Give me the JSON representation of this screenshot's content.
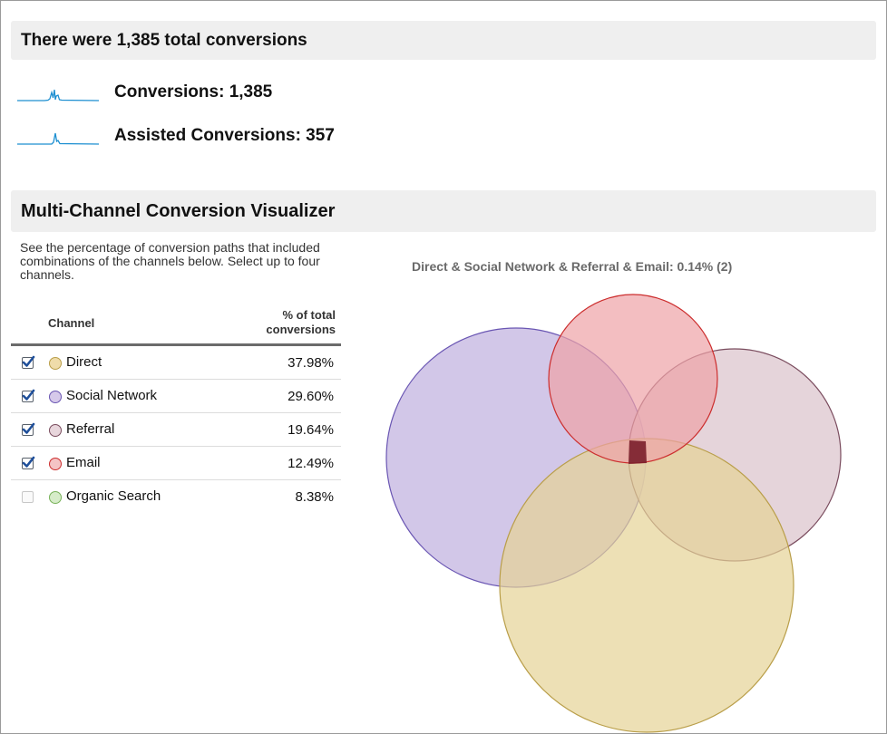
{
  "summary": {
    "title": "There were 1,385 total conversions",
    "metrics": [
      {
        "label": "Conversions: 1,385",
        "sparkline_icon": "sparkline-icon"
      },
      {
        "label": "Assisted Conversions: 357",
        "sparkline_icon": "sparkline-icon"
      }
    ]
  },
  "visualizer": {
    "title": "Multi-Channel Conversion Visualizer",
    "description": "See the percentage of conversion paths that included combinations of the channels below. Select up to four channels.",
    "table": {
      "col_channel": "Channel",
      "col_pct_line1": "% of total",
      "col_pct_line2": "conversions",
      "rows": [
        {
          "name": "Direct",
          "pct": "37.98%",
          "checked": true,
          "color": "#efdcaa",
          "border": "#b99e49"
        },
        {
          "name": "Social Network",
          "pct": "29.60%",
          "checked": true,
          "color": "#d6c9ea",
          "border": "#6a56b3"
        },
        {
          "name": "Referral",
          "pct": "19.64%",
          "checked": true,
          "color": "#e8d6dc",
          "border": "#7a4c5e"
        },
        {
          "name": "Email",
          "pct": "12.49%",
          "checked": true,
          "color": "#f4c3c5",
          "border": "#cc2e2e"
        },
        {
          "name": "Organic Search",
          "pct": "8.38%",
          "checked": false,
          "color": "#d6ecc9",
          "border": "#78b25a"
        }
      ]
    },
    "venn_caption": "Direct & Social Network & Referral & Email: 0.14% (2)"
  },
  "colors": {
    "sparkline": "#1d8fd1",
    "overlap_all": "#7a1e2b"
  }
}
